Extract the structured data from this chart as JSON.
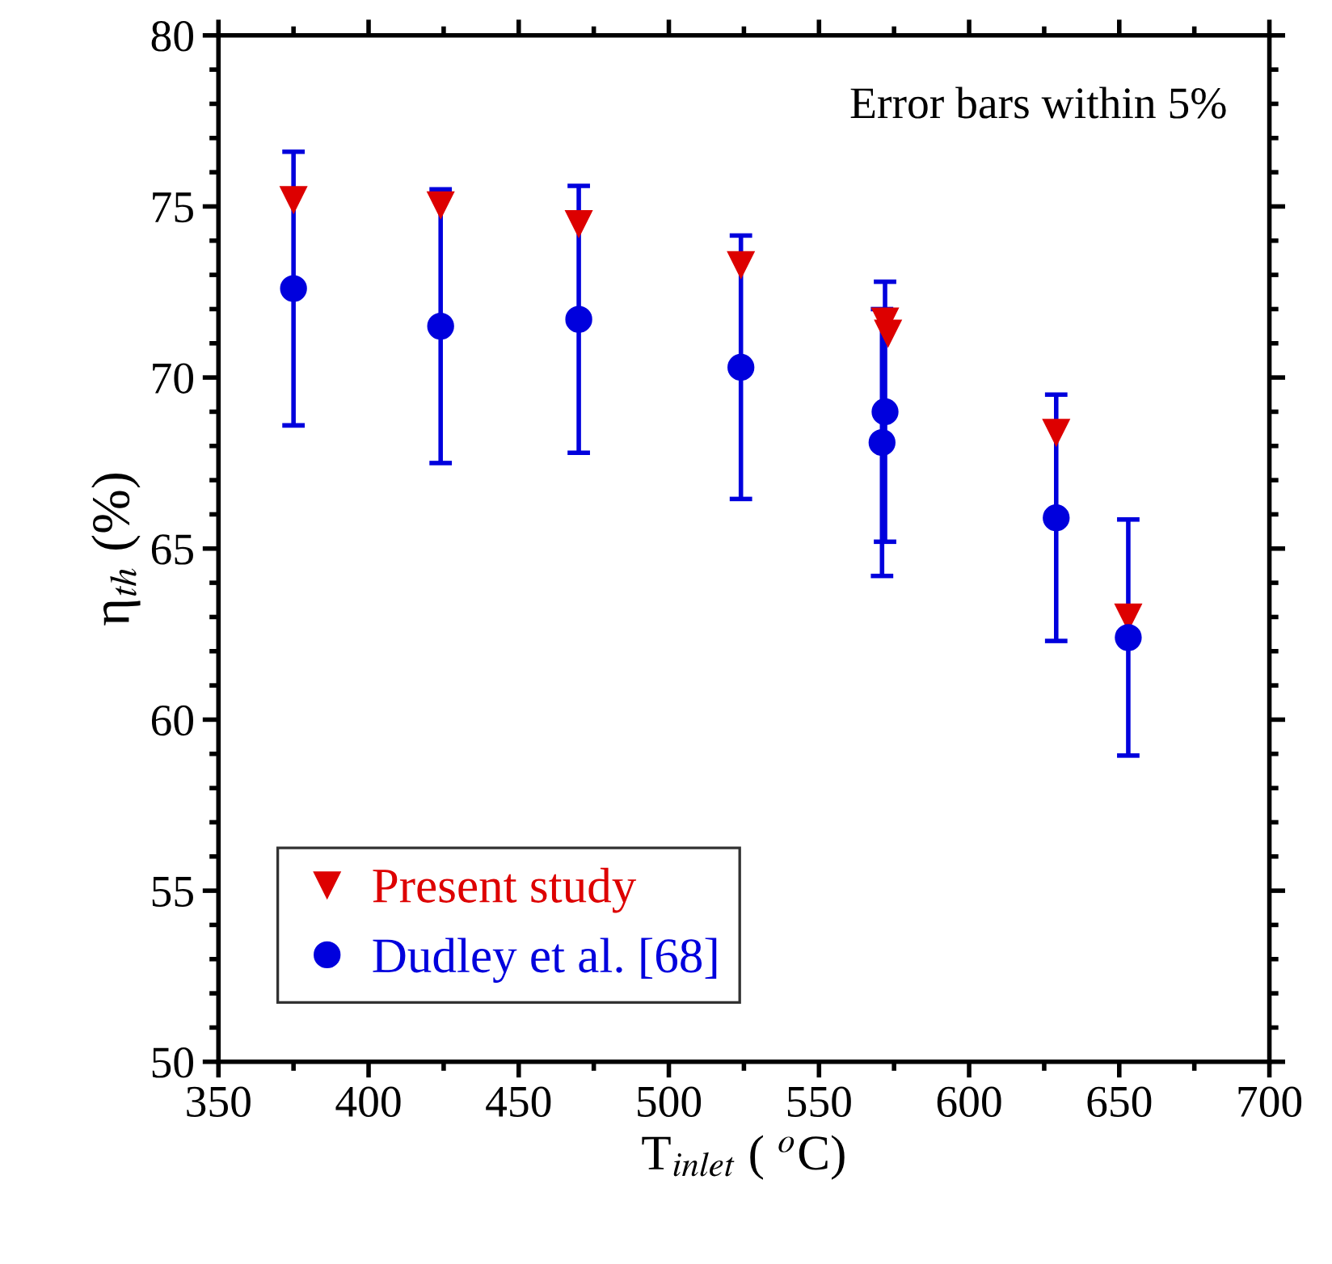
{
  "chart_data": {
    "type": "scatter",
    "xlabel": "T$_{inlet}$ ( $^{o}$C)",
    "ylabel": "η$_{th}$ (%)",
    "xlim": [
      350,
      700
    ],
    "xticks": [
      350,
      400,
      450,
      500,
      550,
      600,
      650,
      700
    ],
    "ylim": [
      50,
      80
    ],
    "yticks": [
      50,
      55,
      60,
      65,
      70,
      75,
      80
    ],
    "grid": false,
    "legend": "bottom left",
    "annotations": [
      "Error bars within 5%"
    ],
    "series": [
      {
        "name": "Present study",
        "color": "#dd0000",
        "marker": "triangle",
        "x": [
          375,
          424,
          470,
          524,
          572,
          573,
          629,
          653
        ],
        "values": [
          75.2,
          75.05,
          74.5,
          73.3,
          71.65,
          71.3,
          68.4,
          63.0
        ]
      },
      {
        "name": "Dudley et al. [68]",
        "color": "#0000dd",
        "marker": "circle",
        "x": [
          375,
          424,
          470,
          524,
          572,
          571,
          629,
          653
        ],
        "values": [
          72.6,
          71.5,
          71.7,
          70.3,
          69.0,
          68.1,
          65.9,
          62.4
        ],
        "errors": [
          4.0,
          4.0,
          3.9,
          3.85,
          3.8,
          3.9,
          3.6,
          3.45
        ]
      }
    ]
  }
}
